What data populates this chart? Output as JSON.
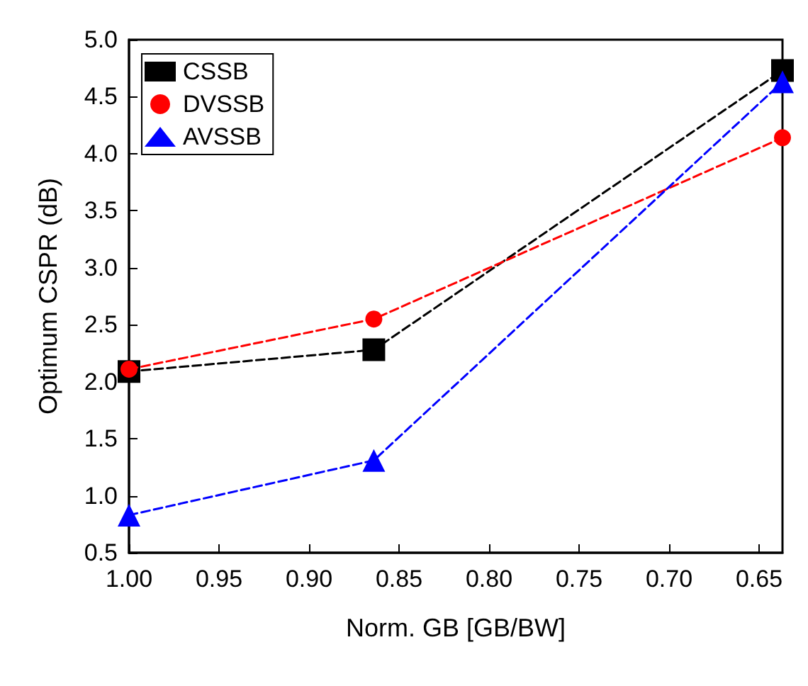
{
  "chart_data": {
    "type": "line",
    "xlabel": "Norm. GB [GB/BW]",
    "ylabel": "Optimum CSPR (dB)",
    "x": [
      1.0,
      0.864,
      0.637
    ],
    "series": [
      {
        "name": "CSSB",
        "color": "#000000",
        "marker": "square",
        "values": [
          2.09,
          2.28,
          4.73
        ]
      },
      {
        "name": "DVSSB",
        "color": "#ff0000",
        "marker": "circle",
        "values": [
          2.11,
          2.55,
          4.14
        ]
      },
      {
        "name": "AVSSB",
        "color": "#0000ff",
        "marker": "triangle",
        "values": [
          0.83,
          1.31,
          4.63
        ]
      }
    ],
    "xlim": [
      1.0,
      0.637
    ],
    "xticks": [
      {
        "value": 1.0,
        "label": "1.00"
      },
      {
        "value": 0.95,
        "label": "0.95"
      },
      {
        "value": 0.9,
        "label": "0.90"
      },
      {
        "value": 0.85,
        "label": "0.85"
      },
      {
        "value": 0.8,
        "label": "0.80"
      },
      {
        "value": 0.75,
        "label": "0.75"
      },
      {
        "value": 0.7,
        "label": "0.70"
      },
      {
        "value": 0.65,
        "label": "0.65"
      }
    ],
    "ylim": [
      0.5,
      5.0
    ],
    "yticks": [
      0.5,
      {
        "value": 1.0,
        "label": "1.0"
      },
      1.5,
      {
        "value": 2.0,
        "label": "2.0"
      },
      2.5,
      {
        "value": 3.0,
        "label": "3.0"
      },
      3.5,
      {
        "value": 4.0,
        "label": "4.0"
      },
      4.5,
      {
        "value": 5.0,
        "label": "5.0"
      }
    ],
    "grid": false,
    "legend": "top left",
    "line_style": "dashed"
  }
}
